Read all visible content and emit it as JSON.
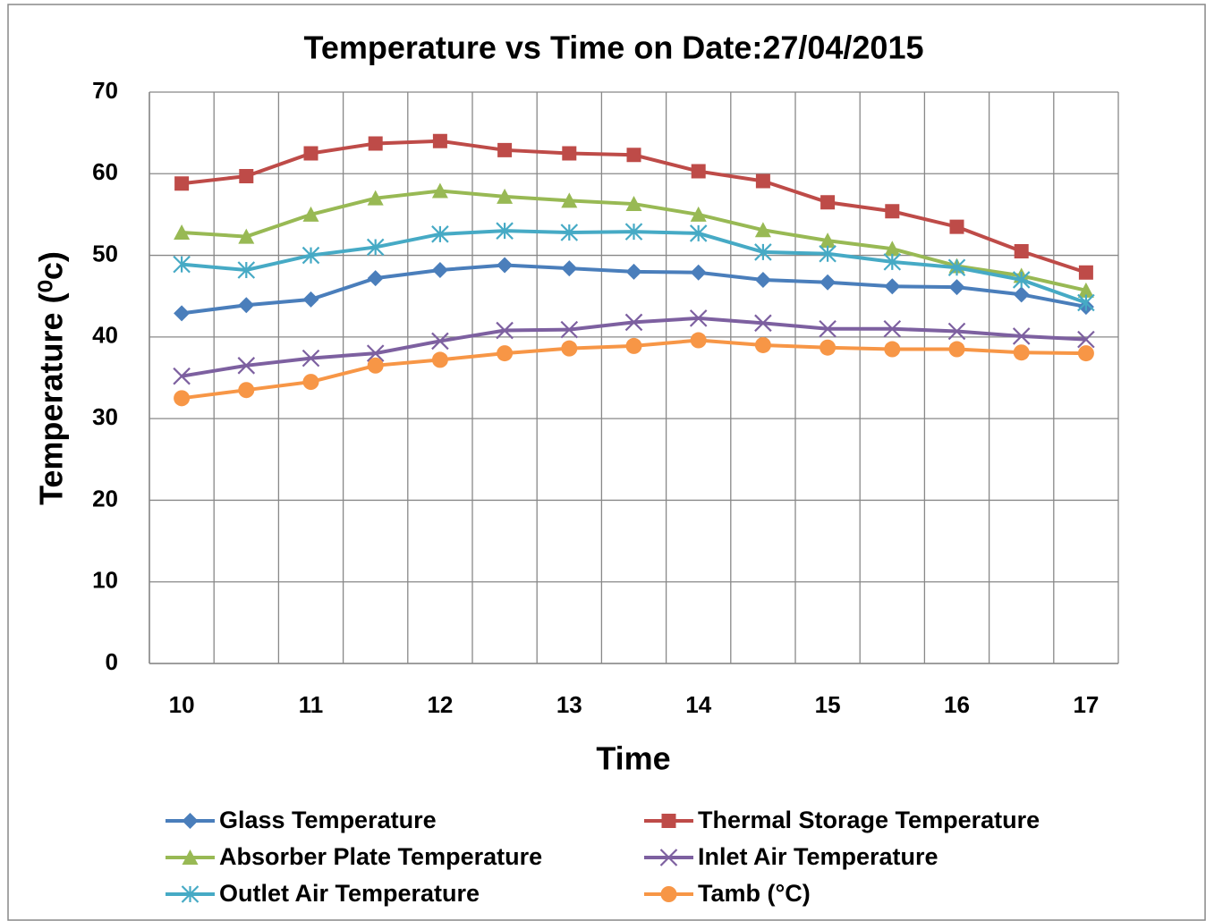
{
  "chart_data": {
    "type": "line",
    "title": "Temperature vs Time on Date:27/04/2015",
    "x_label": "Time",
    "y_label": "Temperature (⁰c)",
    "categories": [
      "10",
      null,
      "11",
      null,
      "12",
      null,
      "13",
      null,
      "14",
      null,
      "15",
      null,
      "16",
      null,
      "17"
    ],
    "ylim": [
      0,
      70
    ],
    "yticks": [
      0,
      10,
      20,
      30,
      40,
      50,
      60,
      70
    ],
    "grid": true,
    "legend": "bottom",
    "series": [
      {
        "name": "Glass Temperature",
        "color": "#4a7ebb",
        "marker": "diamond",
        "values": [
          42.9,
          43.9,
          44.6,
          47.2,
          48.2,
          48.8,
          48.4,
          48.0,
          47.9,
          47.0,
          46.7,
          46.2,
          46.1,
          45.2,
          43.7
        ]
      },
      {
        "name": "Thermal Storage Temperature",
        "color": "#be4b48",
        "marker": "square",
        "values": [
          58.8,
          59.7,
          62.5,
          63.7,
          64.0,
          62.9,
          62.5,
          62.3,
          60.3,
          59.1,
          56.5,
          55.4,
          53.5,
          50.5,
          47.9
        ]
      },
      {
        "name": "Absorber Plate Temperature",
        "color": "#98b954",
        "marker": "triangle",
        "values": [
          52.8,
          52.3,
          55.0,
          57.0,
          57.9,
          57.2,
          56.7,
          56.3,
          55.0,
          53.1,
          51.8,
          50.8,
          48.7,
          47.5,
          45.7
        ]
      },
      {
        "name": "Inlet Air Temperature",
        "color": "#7d60a0",
        "marker": "x",
        "values": [
          35.2,
          36.5,
          37.4,
          38.0,
          39.5,
          40.8,
          40.9,
          41.8,
          42.3,
          41.7,
          41.0,
          41.0,
          40.7,
          40.1,
          39.7
        ]
      },
      {
        "name": "Outlet Air Temperature",
        "color": "#46aac5",
        "marker": "star",
        "values": [
          48.9,
          48.2,
          50.0,
          51.0,
          52.6,
          53.0,
          52.8,
          52.9,
          52.7,
          50.4,
          50.2,
          49.2,
          48.5,
          47.0,
          44.2
        ]
      },
      {
        "name": "Tamb (°C)",
        "color": "#f79646",
        "marker": "circle",
        "values": [
          32.5,
          33.5,
          34.5,
          36.5,
          37.2,
          38.0,
          38.6,
          38.9,
          39.6,
          39.0,
          38.7,
          38.5,
          38.5,
          38.1,
          38.0
        ]
      }
    ]
  }
}
